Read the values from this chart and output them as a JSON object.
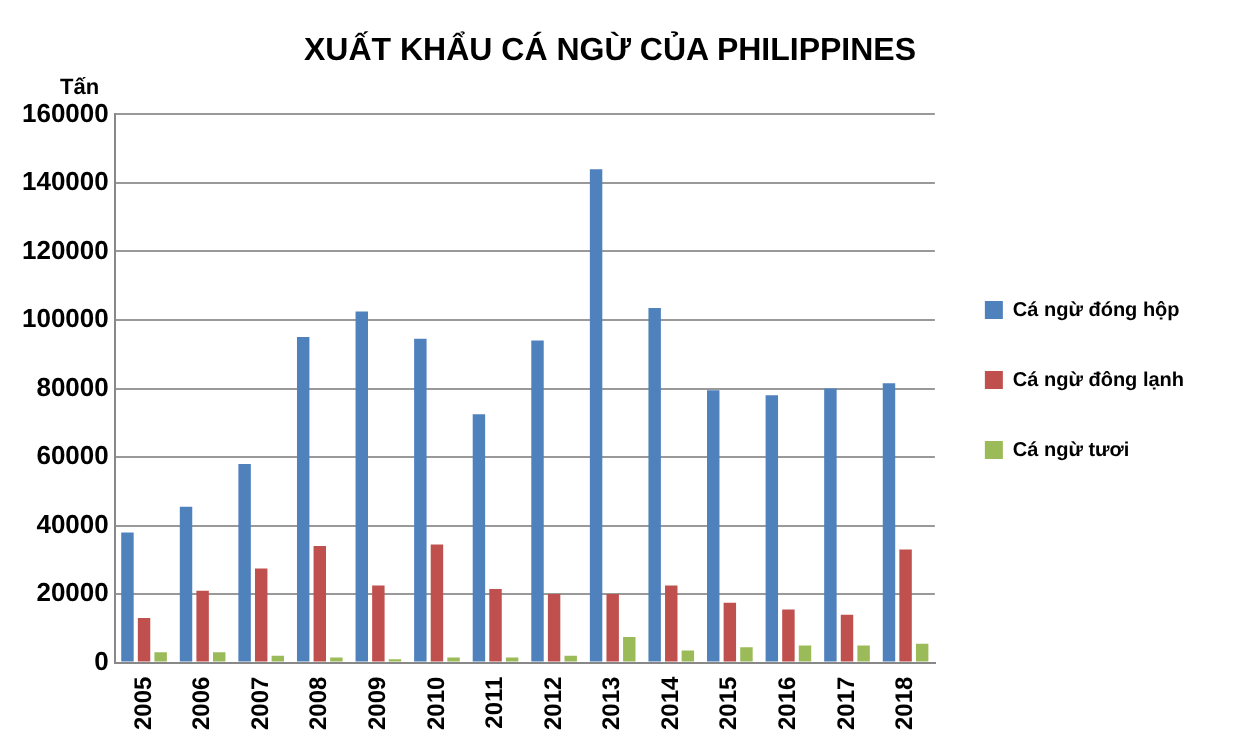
{
  "chart_data": {
    "type": "bar",
    "title": "XUẤT KHẨU CÁ NGỪ CỦA PHILIPPINES",
    "ylabel": "Tấn",
    "categories": [
      "2005",
      "2006",
      "2007",
      "2008",
      "2009",
      "2010",
      "2011",
      "2012",
      "2013",
      "2014",
      "2015",
      "2016",
      "2017",
      "2018"
    ],
    "series": [
      {
        "name": "Cá ngừ đóng hộp",
        "color": "#4f81bd",
        "values": [
          38000,
          45500,
          58000,
          95000,
          102500,
          94500,
          72500,
          94000,
          144000,
          103500,
          79500,
          78000,
          80000,
          81500
        ]
      },
      {
        "name": "Cá ngừ đông lạnh",
        "color": "#c0504d",
        "values": [
          13000,
          21000,
          27500,
          34000,
          22500,
          34500,
          21500,
          20000,
          20000,
          22500,
          17500,
          15500,
          14000,
          33000
        ]
      },
      {
        "name": "Cá ngừ tươi",
        "color": "#9bbb59",
        "values": [
          3000,
          3000,
          2000,
          1500,
          1000,
          1500,
          1500,
          2000,
          7500,
          3500,
          4500,
          5000,
          5000,
          5500
        ]
      }
    ],
    "ylim": [
      0,
      160000
    ],
    "yticks": [
      0,
      20000,
      40000,
      60000,
      80000,
      100000,
      120000,
      140000,
      160000
    ],
    "grid": "y",
    "legend": "right"
  }
}
